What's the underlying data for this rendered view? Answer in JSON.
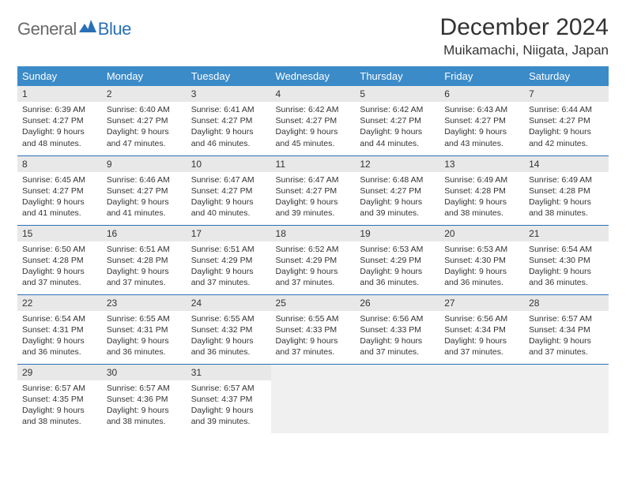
{
  "logo": {
    "word1": "General",
    "word2": "Blue",
    "word1_color": "#6a6a6a",
    "word2_color": "#2a6fb5"
  },
  "title": "December 2024",
  "location": "Muikamachi, Niigata, Japan",
  "colors": {
    "header_bg": "#3b8bc9",
    "header_text": "#ffffff",
    "daynum_bg": "#e8e8e8",
    "border": "#2a6fb5",
    "text": "#333333",
    "empty_bg": "#f0f0f0"
  },
  "days_of_week": [
    "Sunday",
    "Monday",
    "Tuesday",
    "Wednesday",
    "Thursday",
    "Friday",
    "Saturday"
  ],
  "weeks": [
    [
      {
        "n": "1",
        "sr": "Sunrise: 6:39 AM",
        "ss": "Sunset: 4:27 PM",
        "d1": "Daylight: 9 hours",
        "d2": "and 48 minutes."
      },
      {
        "n": "2",
        "sr": "Sunrise: 6:40 AM",
        "ss": "Sunset: 4:27 PM",
        "d1": "Daylight: 9 hours",
        "d2": "and 47 minutes."
      },
      {
        "n": "3",
        "sr": "Sunrise: 6:41 AM",
        "ss": "Sunset: 4:27 PM",
        "d1": "Daylight: 9 hours",
        "d2": "and 46 minutes."
      },
      {
        "n": "4",
        "sr": "Sunrise: 6:42 AM",
        "ss": "Sunset: 4:27 PM",
        "d1": "Daylight: 9 hours",
        "d2": "and 45 minutes."
      },
      {
        "n": "5",
        "sr": "Sunrise: 6:42 AM",
        "ss": "Sunset: 4:27 PM",
        "d1": "Daylight: 9 hours",
        "d2": "and 44 minutes."
      },
      {
        "n": "6",
        "sr": "Sunrise: 6:43 AM",
        "ss": "Sunset: 4:27 PM",
        "d1": "Daylight: 9 hours",
        "d2": "and 43 minutes."
      },
      {
        "n": "7",
        "sr": "Sunrise: 6:44 AM",
        "ss": "Sunset: 4:27 PM",
        "d1": "Daylight: 9 hours",
        "d2": "and 42 minutes."
      }
    ],
    [
      {
        "n": "8",
        "sr": "Sunrise: 6:45 AM",
        "ss": "Sunset: 4:27 PM",
        "d1": "Daylight: 9 hours",
        "d2": "and 41 minutes."
      },
      {
        "n": "9",
        "sr": "Sunrise: 6:46 AM",
        "ss": "Sunset: 4:27 PM",
        "d1": "Daylight: 9 hours",
        "d2": "and 41 minutes."
      },
      {
        "n": "10",
        "sr": "Sunrise: 6:47 AM",
        "ss": "Sunset: 4:27 PM",
        "d1": "Daylight: 9 hours",
        "d2": "and 40 minutes."
      },
      {
        "n": "11",
        "sr": "Sunrise: 6:47 AM",
        "ss": "Sunset: 4:27 PM",
        "d1": "Daylight: 9 hours",
        "d2": "and 39 minutes."
      },
      {
        "n": "12",
        "sr": "Sunrise: 6:48 AM",
        "ss": "Sunset: 4:27 PM",
        "d1": "Daylight: 9 hours",
        "d2": "and 39 minutes."
      },
      {
        "n": "13",
        "sr": "Sunrise: 6:49 AM",
        "ss": "Sunset: 4:28 PM",
        "d1": "Daylight: 9 hours",
        "d2": "and 38 minutes."
      },
      {
        "n": "14",
        "sr": "Sunrise: 6:49 AM",
        "ss": "Sunset: 4:28 PM",
        "d1": "Daylight: 9 hours",
        "d2": "and 38 minutes."
      }
    ],
    [
      {
        "n": "15",
        "sr": "Sunrise: 6:50 AM",
        "ss": "Sunset: 4:28 PM",
        "d1": "Daylight: 9 hours",
        "d2": "and 37 minutes."
      },
      {
        "n": "16",
        "sr": "Sunrise: 6:51 AM",
        "ss": "Sunset: 4:28 PM",
        "d1": "Daylight: 9 hours",
        "d2": "and 37 minutes."
      },
      {
        "n": "17",
        "sr": "Sunrise: 6:51 AM",
        "ss": "Sunset: 4:29 PM",
        "d1": "Daylight: 9 hours",
        "d2": "and 37 minutes."
      },
      {
        "n": "18",
        "sr": "Sunrise: 6:52 AM",
        "ss": "Sunset: 4:29 PM",
        "d1": "Daylight: 9 hours",
        "d2": "and 37 minutes."
      },
      {
        "n": "19",
        "sr": "Sunrise: 6:53 AM",
        "ss": "Sunset: 4:29 PM",
        "d1": "Daylight: 9 hours",
        "d2": "and 36 minutes."
      },
      {
        "n": "20",
        "sr": "Sunrise: 6:53 AM",
        "ss": "Sunset: 4:30 PM",
        "d1": "Daylight: 9 hours",
        "d2": "and 36 minutes."
      },
      {
        "n": "21",
        "sr": "Sunrise: 6:54 AM",
        "ss": "Sunset: 4:30 PM",
        "d1": "Daylight: 9 hours",
        "d2": "and 36 minutes."
      }
    ],
    [
      {
        "n": "22",
        "sr": "Sunrise: 6:54 AM",
        "ss": "Sunset: 4:31 PM",
        "d1": "Daylight: 9 hours",
        "d2": "and 36 minutes."
      },
      {
        "n": "23",
        "sr": "Sunrise: 6:55 AM",
        "ss": "Sunset: 4:31 PM",
        "d1": "Daylight: 9 hours",
        "d2": "and 36 minutes."
      },
      {
        "n": "24",
        "sr": "Sunrise: 6:55 AM",
        "ss": "Sunset: 4:32 PM",
        "d1": "Daylight: 9 hours",
        "d2": "and 36 minutes."
      },
      {
        "n": "25",
        "sr": "Sunrise: 6:55 AM",
        "ss": "Sunset: 4:33 PM",
        "d1": "Daylight: 9 hours",
        "d2": "and 37 minutes."
      },
      {
        "n": "26",
        "sr": "Sunrise: 6:56 AM",
        "ss": "Sunset: 4:33 PM",
        "d1": "Daylight: 9 hours",
        "d2": "and 37 minutes."
      },
      {
        "n": "27",
        "sr": "Sunrise: 6:56 AM",
        "ss": "Sunset: 4:34 PM",
        "d1": "Daylight: 9 hours",
        "d2": "and 37 minutes."
      },
      {
        "n": "28",
        "sr": "Sunrise: 6:57 AM",
        "ss": "Sunset: 4:34 PM",
        "d1": "Daylight: 9 hours",
        "d2": "and 37 minutes."
      }
    ],
    [
      {
        "n": "29",
        "sr": "Sunrise: 6:57 AM",
        "ss": "Sunset: 4:35 PM",
        "d1": "Daylight: 9 hours",
        "d2": "and 38 minutes."
      },
      {
        "n": "30",
        "sr": "Sunrise: 6:57 AM",
        "ss": "Sunset: 4:36 PM",
        "d1": "Daylight: 9 hours",
        "d2": "and 38 minutes."
      },
      {
        "n": "31",
        "sr": "Sunrise: 6:57 AM",
        "ss": "Sunset: 4:37 PM",
        "d1": "Daylight: 9 hours",
        "d2": "and 39 minutes."
      },
      null,
      null,
      null,
      null
    ]
  ]
}
